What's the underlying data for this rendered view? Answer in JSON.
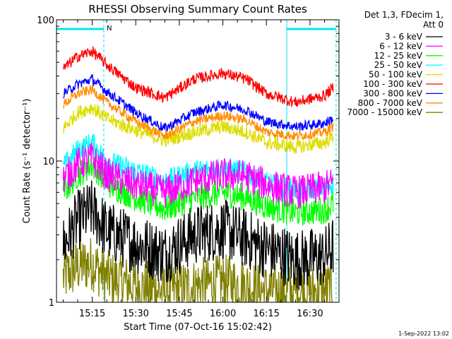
{
  "chart_data": {
    "type": "line",
    "title": "RHESSI Observing Summary Count Rates",
    "xlabel": "Start Time (07-Oct-16 15:02:42)",
    "ylabel": "Count Rate (s⁻¹ detector⁻¹)",
    "y_scale": "log",
    "ylim": [
      1,
      100
    ],
    "xlim": [
      "15:02:42",
      "16:40:00"
    ],
    "x_tick_labels": [
      "15:15",
      "15:30",
      "15:45",
      "16:00",
      "16:15",
      "16:30"
    ],
    "y_tick_labels": [
      "1",
      "10",
      "100"
    ],
    "legend_header": [
      "Det 1,3, FDecim 1,",
      "Att 0"
    ],
    "legend_position": "right",
    "timestamp": "1-Sep-2022 13:02",
    "flags": {
      "saa_bars": [
        [
          "15:02:42",
          "15:19"
        ],
        [
          "16:22",
          "16:39"
        ]
      ],
      "night_markers": [
        "15:19",
        "16:22",
        "16:39"
      ],
      "label": "N",
      "color": "#00e5ee"
    },
    "series": [
      {
        "name": "3 - 6 keV",
        "color": "#000000",
        "points": [
          [
            "15:05",
            2.5
          ],
          [
            "15:10",
            3.8
          ],
          [
            "15:15",
            4.5
          ],
          [
            "15:20",
            3.2
          ],
          [
            "15:30",
            2.6
          ],
          [
            "15:40",
            2.2
          ],
          [
            "15:50",
            3.0
          ],
          [
            "16:00",
            3.3
          ],
          [
            "16:08",
            2.8
          ],
          [
            "16:15",
            2.4
          ],
          [
            "16:25",
            2.0
          ],
          [
            "16:35",
            2.1
          ],
          [
            "16:38",
            2.5
          ]
        ]
      },
      {
        "name": "6 - 12 keV",
        "color": "#ff00ff",
        "points": [
          [
            "15:05",
            7.5
          ],
          [
            "15:10",
            9.5
          ],
          [
            "15:15",
            10.5
          ],
          [
            "15:20",
            8.0
          ],
          [
            "15:30",
            6.8
          ],
          [
            "15:40",
            6.0
          ],
          [
            "15:50",
            7.2
          ],
          [
            "16:00",
            8.0
          ],
          [
            "16:08",
            7.8
          ],
          [
            "16:15",
            6.8
          ],
          [
            "16:25",
            6.0
          ],
          [
            "16:35",
            6.5
          ],
          [
            "16:38",
            7.0
          ]
        ]
      },
      {
        "name": "12 - 25 keV",
        "color": "#00ff00",
        "points": [
          [
            "15:05",
            6.0
          ],
          [
            "15:10",
            8.0
          ],
          [
            "15:15",
            9.5
          ],
          [
            "15:20",
            7.0
          ],
          [
            "15:30",
            5.5
          ],
          [
            "15:40",
            4.6
          ],
          [
            "15:50",
            5.5
          ],
          [
            "16:00",
            6.0
          ],
          [
            "16:08",
            5.5
          ],
          [
            "16:15",
            4.8
          ],
          [
            "16:25",
            4.3
          ],
          [
            "16:35",
            4.5
          ],
          [
            "16:38",
            5.0
          ]
        ]
      },
      {
        "name": "25 - 50 keV",
        "color": "#00ffff",
        "points": [
          [
            "15:05",
            9.0
          ],
          [
            "15:10",
            12.0
          ],
          [
            "15:15",
            13.5
          ],
          [
            "15:20",
            10.0
          ],
          [
            "15:30",
            8.5
          ],
          [
            "15:40",
            7.2
          ],
          [
            "15:50",
            8.5
          ],
          [
            "16:00",
            9.0
          ],
          [
            "16:08",
            8.3
          ],
          [
            "16:15",
            7.0
          ],
          [
            "16:25",
            6.2
          ],
          [
            "16:35",
            6.5
          ],
          [
            "16:38",
            7.0
          ]
        ]
      },
      {
        "name": "50 - 100 keV",
        "color": "#dddd00",
        "points": [
          [
            "15:05",
            17.0
          ],
          [
            "15:10",
            22.0
          ],
          [
            "15:15",
            24.0
          ],
          [
            "15:20",
            20.0
          ],
          [
            "15:30",
            16.5
          ],
          [
            "15:40",
            14.0
          ],
          [
            "15:50",
            16.0
          ],
          [
            "16:00",
            17.5
          ],
          [
            "16:08",
            16.0
          ],
          [
            "16:15",
            13.5
          ],
          [
            "16:25",
            12.5
          ],
          [
            "16:35",
            13.5
          ],
          [
            "16:38",
            15.0
          ]
        ]
      },
      {
        "name": "100 - 300 keV",
        "color": "#ff0000",
        "points": [
          [
            "15:05",
            45.0
          ],
          [
            "15:10",
            55.0
          ],
          [
            "15:15",
            60.0
          ],
          [
            "15:20",
            48.0
          ],
          [
            "15:30",
            33.0
          ],
          [
            "15:40",
            28.0
          ],
          [
            "15:50",
            38.0
          ],
          [
            "16:00",
            42.0
          ],
          [
            "16:08",
            38.0
          ],
          [
            "16:15",
            30.0
          ],
          [
            "16:25",
            26.0
          ],
          [
            "16:35",
            29.0
          ],
          [
            "16:38",
            33.0
          ]
        ]
      },
      {
        "name": "300 - 800 keV",
        "color": "#0000ff",
        "points": [
          [
            "15:05",
            30.0
          ],
          [
            "15:10",
            35.0
          ],
          [
            "15:15",
            38.0
          ],
          [
            "15:20",
            31.0
          ],
          [
            "15:30",
            22.0
          ],
          [
            "15:40",
            17.0
          ],
          [
            "15:50",
            22.0
          ],
          [
            "16:00",
            25.0
          ],
          [
            "16:08",
            23.0
          ],
          [
            "16:15",
            19.0
          ],
          [
            "16:25",
            17.5
          ],
          [
            "16:35",
            18.5
          ],
          [
            "16:38",
            20.0
          ]
        ]
      },
      {
        "name": "800 - 7000 keV",
        "color": "#ff8c00",
        "points": [
          [
            "15:05",
            25.0
          ],
          [
            "15:10",
            30.0
          ],
          [
            "15:15",
            32.0
          ],
          [
            "15:20",
            26.0
          ],
          [
            "15:30",
            19.0
          ],
          [
            "15:40",
            15.0
          ],
          [
            "15:50",
            19.0
          ],
          [
            "16:00",
            21.0
          ],
          [
            "16:08",
            19.5
          ],
          [
            "16:15",
            16.0
          ],
          [
            "16:25",
            15.0
          ],
          [
            "16:35",
            16.0
          ],
          [
            "16:38",
            17.5
          ]
        ]
      },
      {
        "name": "7000 - 15000 keV",
        "color": "#808000",
        "points": [
          [
            "15:05",
            1.5
          ],
          [
            "15:10",
            1.8
          ],
          [
            "15:15",
            1.9
          ],
          [
            "15:20",
            1.5
          ],
          [
            "15:30",
            1.3
          ],
          [
            "15:40",
            1.2
          ],
          [
            "15:50",
            1.3
          ],
          [
            "16:00",
            1.4
          ],
          [
            "16:08",
            1.3
          ],
          [
            "16:15",
            1.2
          ],
          [
            "16:25",
            1.2
          ],
          [
            "16:35",
            1.2
          ],
          [
            "16:38",
            1.3
          ]
        ]
      }
    ]
  }
}
